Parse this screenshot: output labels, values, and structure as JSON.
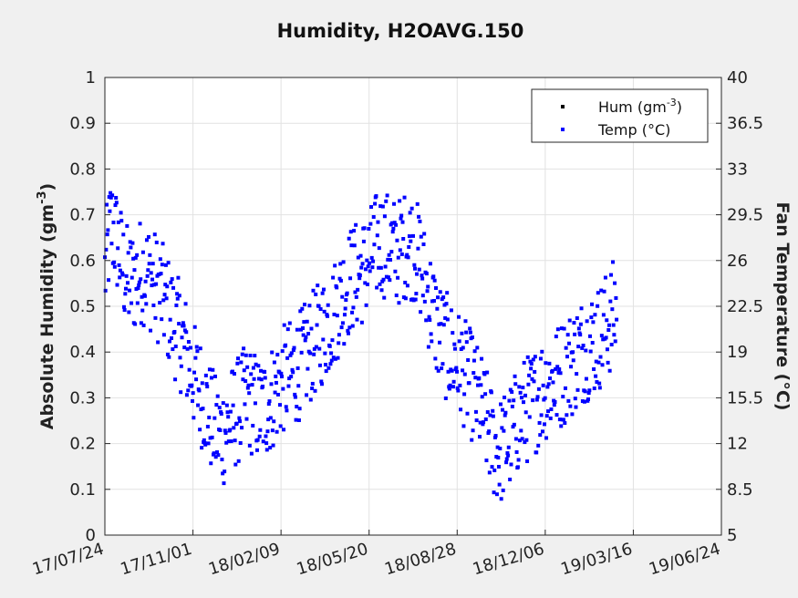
{
  "chart_data": {
    "type": "scatter",
    "title": "Humidity, H2OAVG.150",
    "ylabel_left": {
      "base": "Absolute Humidity (gm",
      "sup": "-3",
      "end": ")"
    },
    "ylabel_right": "Fan Temperature (°C)",
    "x_ticks": [
      "17/07/24",
      "17/11/01",
      "18/02/09",
      "18/05/20",
      "18/08/28",
      "18/12/06",
      "19/03/16",
      "19/06/24"
    ],
    "x_range": [
      "17/07/24",
      "19/06/24"
    ],
    "y_left_range": [
      0,
      1
    ],
    "y_left_ticks": [
      "0",
      "0.1",
      "0.2",
      "0.3",
      "0.4",
      "0.5",
      "0.6",
      "0.7",
      "0.8",
      "0.9",
      "1"
    ],
    "y_right_range": [
      5,
      40
    ],
    "y_right_ticks": [
      "5",
      "8.5",
      "12",
      "15.5",
      "19",
      "22.5",
      "26",
      "29.5",
      "33",
      "36.5",
      "40"
    ],
    "grid": true,
    "legend_position": "top-right",
    "series": [
      {
        "name": "Hum",
        "name_sup": "-3",
        "name_prefix": "Hum (gm",
        "name_suffix": ")",
        "color": "#000000",
        "axis": "left",
        "values": []
      },
      {
        "name": "Temp (°C)",
        "color": "#0000ff",
        "axis": "left",
        "trend": [
          [
            0,
            0.57
          ],
          [
            7,
            0.68
          ],
          [
            14,
            0.64
          ],
          [
            21,
            0.58
          ],
          [
            28,
            0.55
          ],
          [
            35,
            0.56
          ],
          [
            42,
            0.58
          ],
          [
            49,
            0.57
          ],
          [
            56,
            0.55
          ],
          [
            63,
            0.53
          ],
          [
            70,
            0.5
          ],
          [
            77,
            0.47
          ],
          [
            84,
            0.44
          ],
          [
            91,
            0.41
          ],
          [
            98,
            0.36
          ],
          [
            105,
            0.33
          ],
          [
            112,
            0.3
          ],
          [
            119,
            0.26
          ],
          [
            126,
            0.23
          ],
          [
            133,
            0.22
          ],
          [
            140,
            0.24
          ],
          [
            147,
            0.26
          ],
          [
            154,
            0.28
          ],
          [
            161,
            0.3
          ],
          [
            168,
            0.29
          ],
          [
            175,
            0.27
          ],
          [
            182,
            0.28
          ],
          [
            189,
            0.3
          ],
          [
            196,
            0.32
          ],
          [
            203,
            0.34
          ],
          [
            210,
            0.35
          ],
          [
            217,
            0.36
          ],
          [
            224,
            0.38
          ],
          [
            231,
            0.4
          ],
          [
            238,
            0.42
          ],
          [
            245,
            0.44
          ],
          [
            252,
            0.46
          ],
          [
            259,
            0.48
          ],
          [
            266,
            0.51
          ],
          [
            273,
            0.54
          ],
          [
            280,
            0.56
          ],
          [
            287,
            0.57
          ],
          [
            294,
            0.58
          ],
          [
            301,
            0.6
          ],
          [
            308,
            0.63
          ],
          [
            315,
            0.64
          ],
          [
            322,
            0.63
          ],
          [
            329,
            0.62
          ],
          [
            336,
            0.62
          ],
          [
            343,
            0.64
          ],
          [
            350,
            0.63
          ],
          [
            357,
            0.6
          ],
          [
            364,
            0.55
          ],
          [
            371,
            0.5
          ],
          [
            378,
            0.45
          ],
          [
            385,
            0.42
          ],
          [
            392,
            0.4
          ],
          [
            399,
            0.38
          ],
          [
            406,
            0.36
          ],
          [
            413,
            0.34
          ],
          [
            420,
            0.31
          ],
          [
            427,
            0.28
          ],
          [
            434,
            0.24
          ],
          [
            441,
            0.2
          ],
          [
            448,
            0.18
          ],
          [
            455,
            0.2
          ],
          [
            462,
            0.22
          ],
          [
            469,
            0.25
          ],
          [
            476,
            0.27
          ],
          [
            483,
            0.28
          ],
          [
            490,
            0.3
          ],
          [
            497,
            0.32
          ],
          [
            504,
            0.33
          ],
          [
            511,
            0.34
          ],
          [
            518,
            0.35
          ],
          [
            525,
            0.37
          ],
          [
            532,
            0.38
          ],
          [
            539,
            0.4
          ],
          [
            546,
            0.41
          ],
          [
            553,
            0.42
          ],
          [
            560,
            0.43
          ],
          [
            567,
            0.45
          ],
          [
            574,
            0.47
          ],
          [
            581,
            0.5
          ]
        ]
      }
    ]
  }
}
